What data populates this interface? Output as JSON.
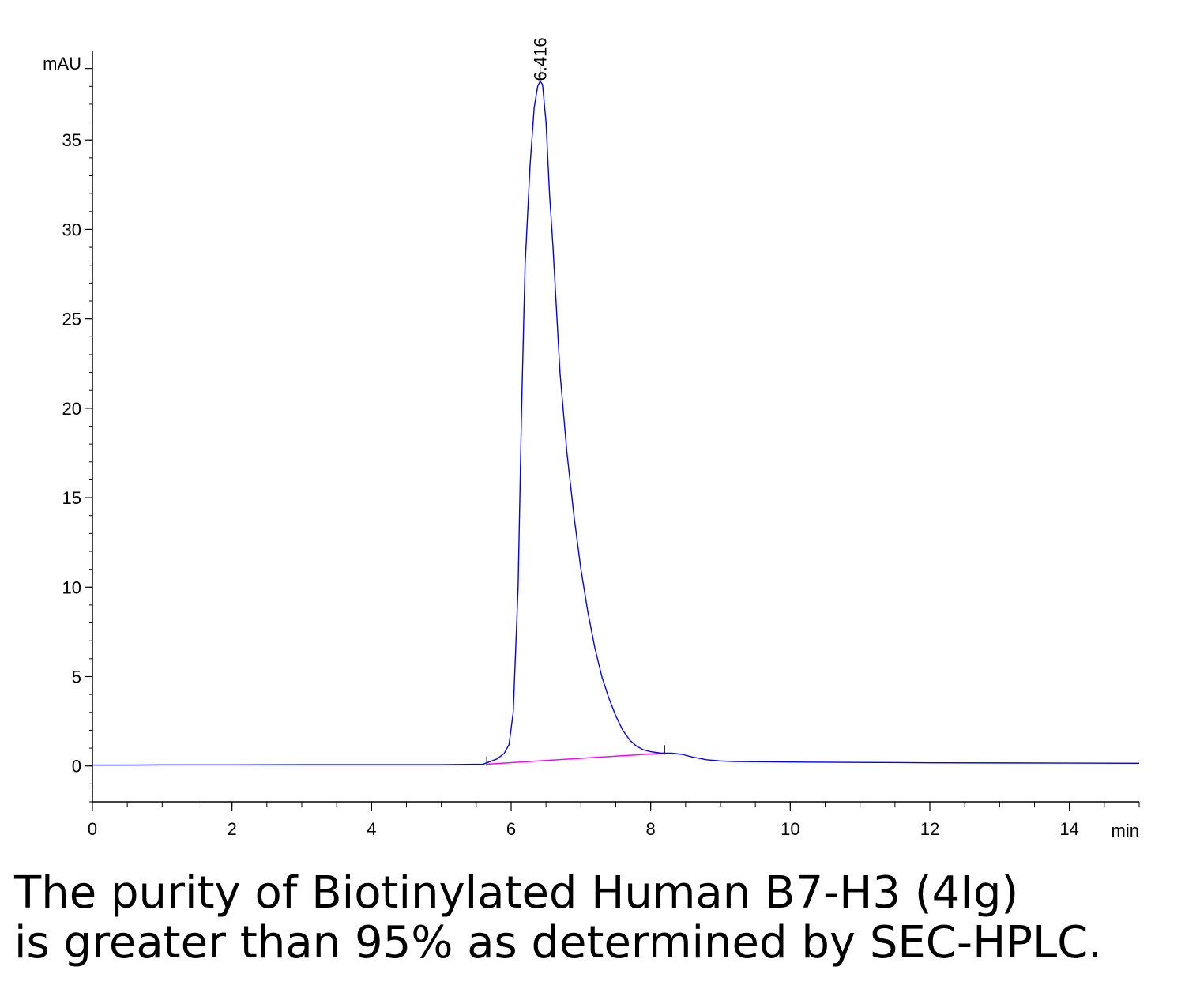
{
  "chart_data": {
    "type": "line",
    "xlabel": "min",
    "ylabel": "mAU",
    "xlim": [
      0,
      15
    ],
    "ylim": [
      -2,
      40
    ],
    "x_ticks": [
      0,
      2,
      4,
      6,
      8,
      10,
      12,
      14
    ],
    "y_ticks": [
      0,
      5,
      10,
      15,
      20,
      25,
      30,
      35
    ],
    "grid": false,
    "series": [
      {
        "color": "#0000ff",
        "points": [
          [
            0.0,
            0.05
          ],
          [
            0.6,
            0.05
          ],
          [
            1.0,
            0.06
          ],
          [
            2.0,
            0.06
          ],
          [
            3.0,
            0.07
          ],
          [
            4.0,
            0.07
          ],
          [
            5.0,
            0.07
          ],
          [
            5.6,
            0.1
          ],
          [
            5.8,
            0.4
          ],
          [
            5.9,
            0.7
          ],
          [
            5.97,
            1.2
          ],
          [
            6.03,
            3.0
          ],
          [
            6.1,
            10.0
          ],
          [
            6.15,
            20.0
          ],
          [
            6.2,
            28.0
          ],
          [
            6.27,
            33.5
          ],
          [
            6.33,
            36.8
          ],
          [
            6.38,
            38.0
          ],
          [
            6.416,
            38.3
          ],
          [
            6.45,
            38.1
          ],
          [
            6.5,
            36.0
          ],
          [
            6.55,
            32.0
          ],
          [
            6.6,
            29.0
          ],
          [
            6.7,
            22.0
          ],
          [
            6.8,
            17.5
          ],
          [
            6.9,
            14.0
          ],
          [
            7.0,
            11.0
          ],
          [
            7.1,
            8.6
          ],
          [
            7.2,
            6.6
          ],
          [
            7.3,
            5.0
          ],
          [
            7.4,
            3.8
          ],
          [
            7.5,
            2.8
          ],
          [
            7.6,
            2.0
          ],
          [
            7.7,
            1.45
          ],
          [
            7.8,
            1.1
          ],
          [
            7.9,
            0.9
          ],
          [
            8.0,
            0.8
          ],
          [
            8.15,
            0.72
          ],
          [
            8.3,
            0.72
          ],
          [
            8.45,
            0.65
          ],
          [
            8.6,
            0.5
          ],
          [
            8.8,
            0.35
          ],
          [
            9.0,
            0.28
          ],
          [
            9.2,
            0.25
          ],
          [
            9.5,
            0.24
          ],
          [
            10.0,
            0.22
          ],
          [
            11.0,
            0.2
          ],
          [
            12.0,
            0.18
          ],
          [
            13.0,
            0.17
          ],
          [
            14.0,
            0.16
          ],
          [
            15.0,
            0.15
          ]
        ]
      }
    ],
    "baseline": {
      "color": "#ff00ff",
      "points": [
        [
          5.65,
          0.1
        ],
        [
          8.2,
          0.72
        ]
      ]
    },
    "integration_ticks": [
      5.65,
      8.2
    ],
    "peak_label": {
      "text": "6.416",
      "x": 6.416,
      "y": 38.3
    }
  },
  "caption": {
    "line1": "The purity of Biotinylated Human B7-H3 (4Ig)",
    "line2": "is greater than 95% as determined by SEC-HPLC."
  }
}
